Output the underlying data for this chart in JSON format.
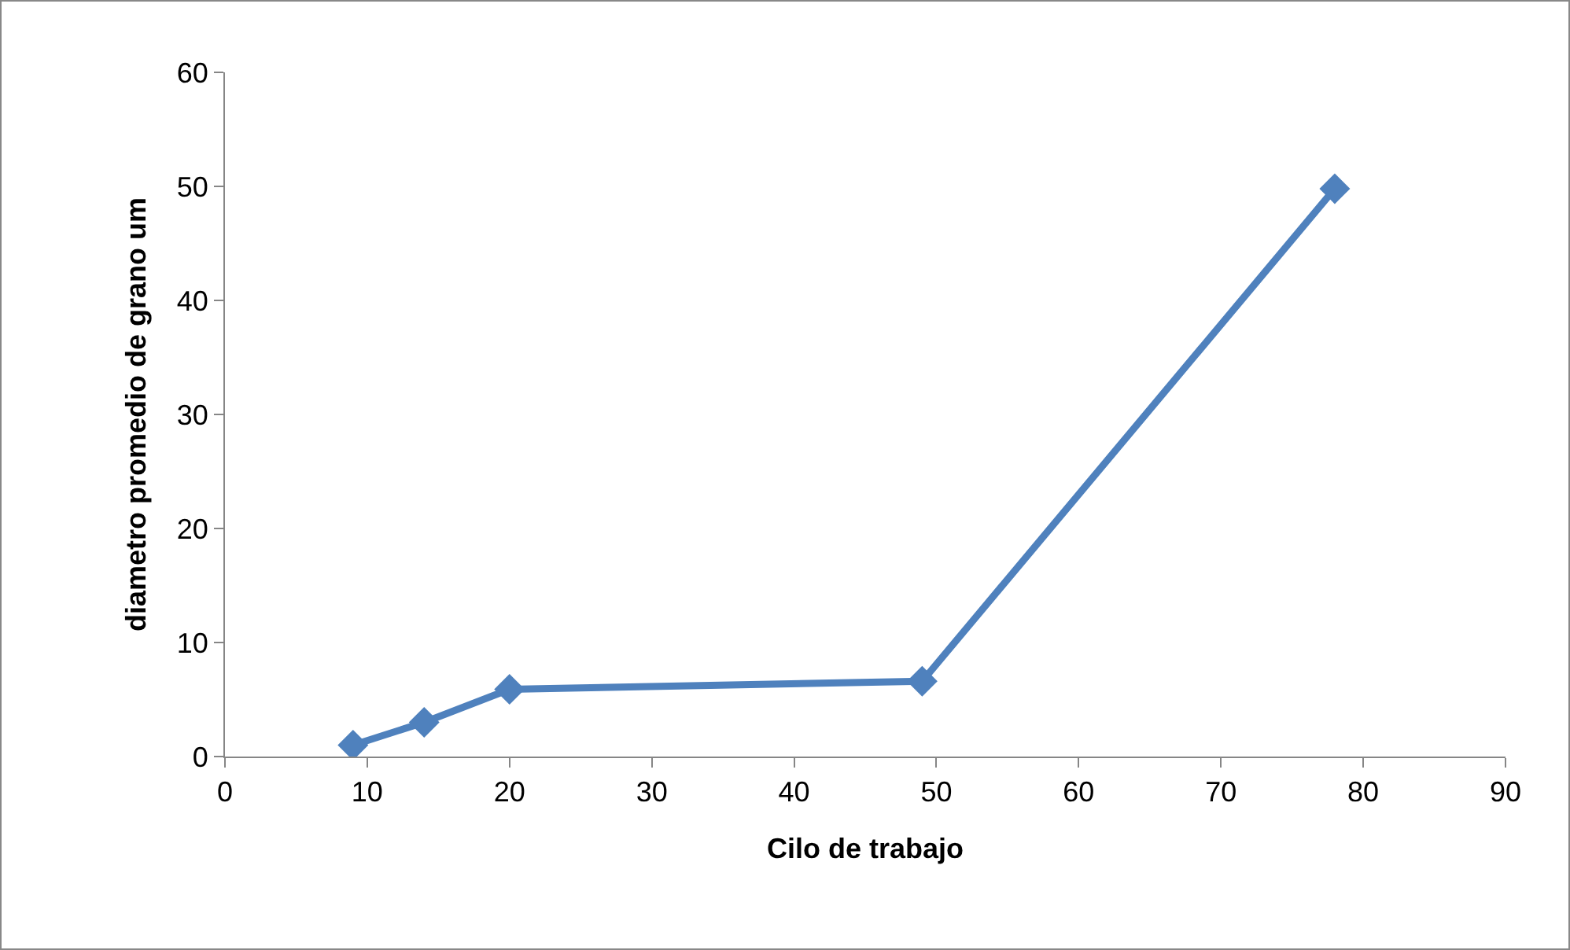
{
  "chart_data": {
    "type": "line",
    "xlabel": "Cilo de trabajo",
    "ylabel": "diametro promedio de grano um",
    "x": [
      9,
      14,
      20,
      49,
      78
    ],
    "series": [
      {
        "color": "#4f81bd",
        "values": [
          1,
          3,
          5.9,
          6.6,
          49.8
        ]
      }
    ],
    "xlim": [
      0,
      90
    ],
    "xticks": [
      0,
      10,
      20,
      30,
      40,
      50,
      60,
      70,
      80,
      90
    ],
    "ylim": [
      0,
      60
    ],
    "yticks": [
      0,
      10,
      20,
      30,
      40,
      50,
      60
    ],
    "grid": false,
    "marker": "diamond",
    "line_style": "solid"
  }
}
